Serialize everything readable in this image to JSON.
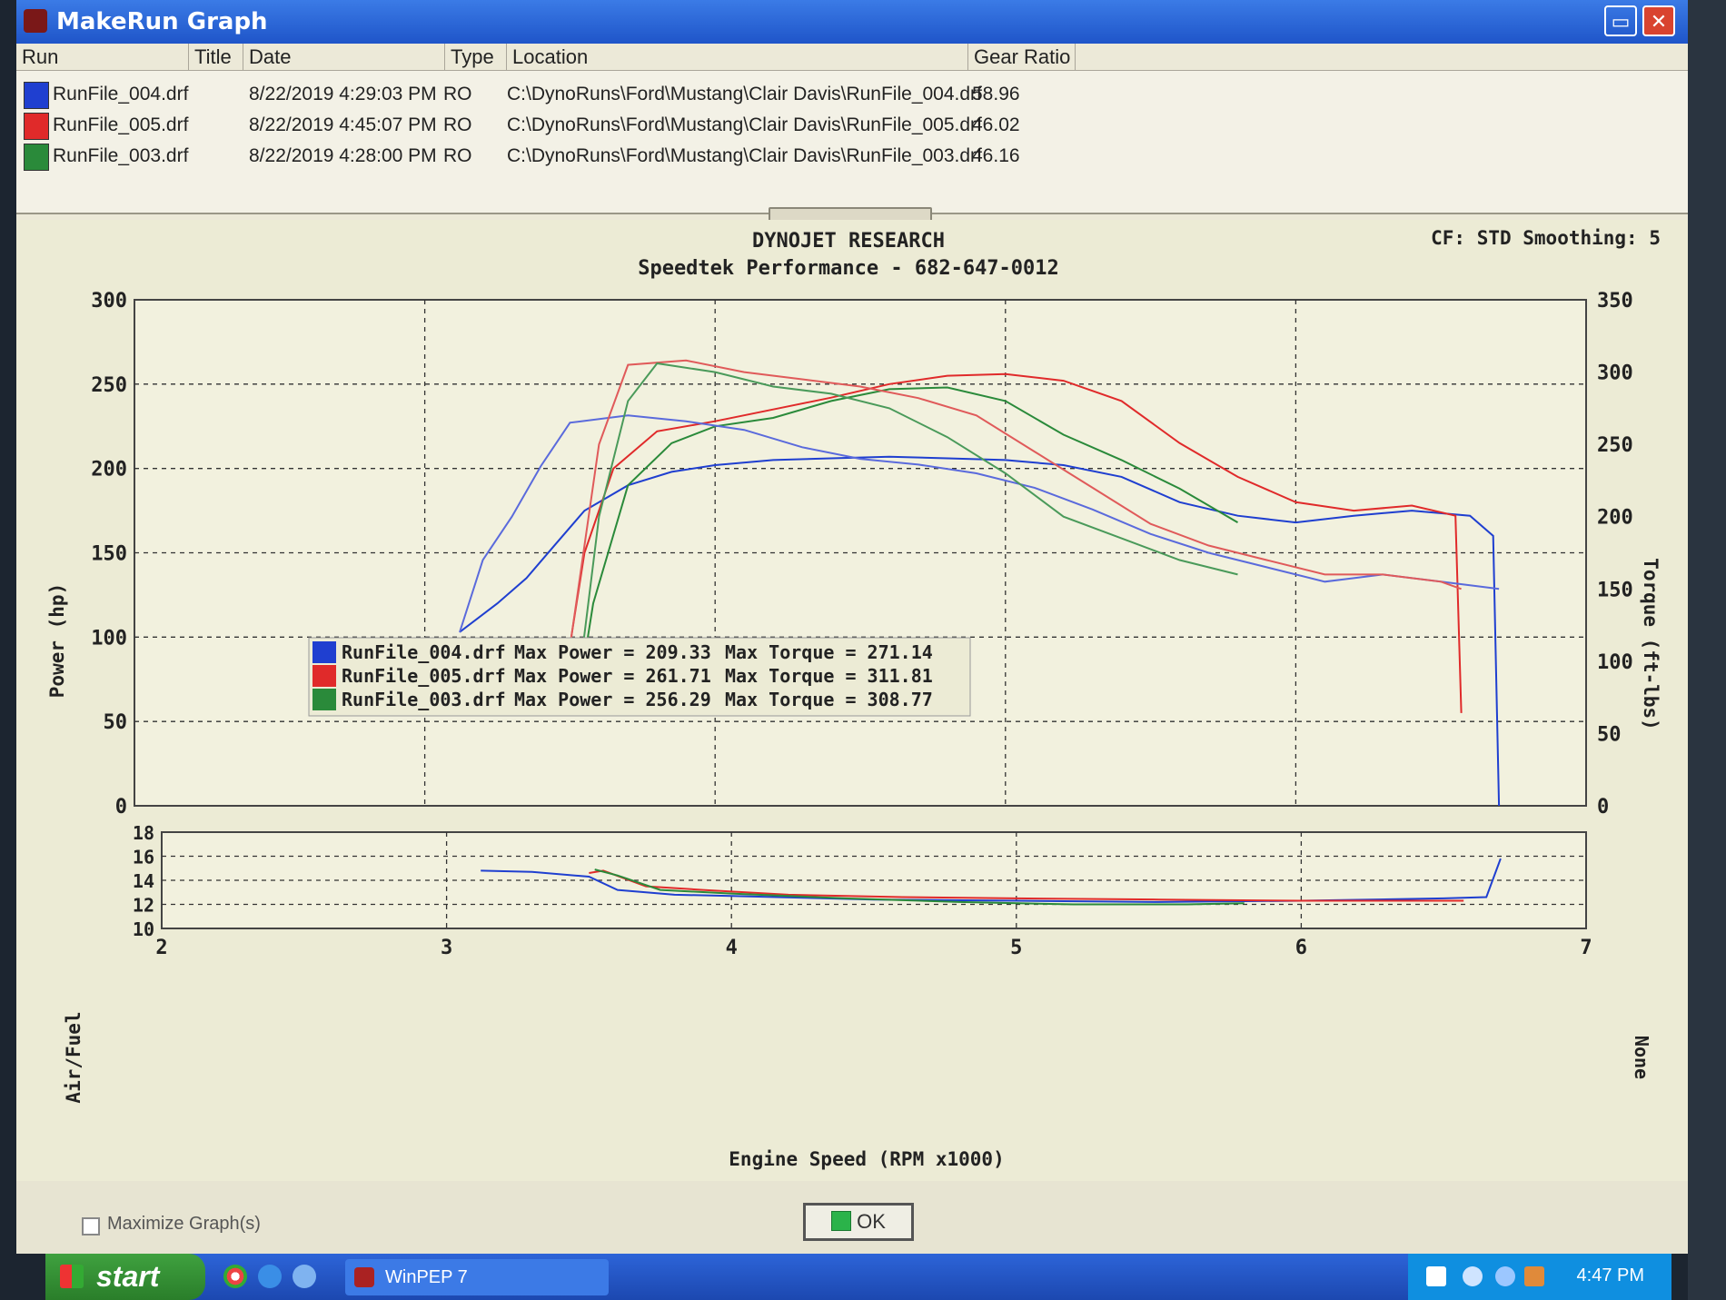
{
  "window": {
    "title": "MakeRun Graph"
  },
  "runlist": {
    "headers": {
      "run": "Run",
      "title": "Title",
      "date": "Date",
      "type": "Type",
      "location": "Location",
      "gear": "Gear Ratio"
    },
    "rows": [
      {
        "name": "RunFile_004.drf",
        "date": "8/22/2019 4:29:03 PM",
        "type": "RO",
        "location": "C:\\DynoRuns\\Ford\\Mustang\\Clair Davis\\RunFile_004.drf",
        "gear": "58.96",
        "color": "#1f3fd0"
      },
      {
        "name": "RunFile_005.drf",
        "date": "8/22/2019 4:45:07 PM",
        "type": "RO",
        "location": "C:\\DynoRuns\\Ford\\Mustang\\Clair Davis\\RunFile_005.drf",
        "gear": "46.02",
        "color": "#e02a2a"
      },
      {
        "name": "RunFile_003.drf",
        "date": "8/22/2019 4:28:00 PM",
        "type": "RO",
        "location": "C:\\DynoRuns\\Ford\\Mustang\\Clair Davis\\RunFile_003.drf",
        "gear": "46.16",
        "color": "#2a8a3a"
      }
    ]
  },
  "graph": {
    "title": "DYNOJET RESEARCH",
    "subtitle": "Speedtek Performance - 682-647-0012",
    "info": "CF: STD  Smoothing: 5",
    "legend": [
      {
        "file": "RunFile_004.drf",
        "power_label": "Max Power = 209.33",
        "torque_label": "Max Torque = 271.14"
      },
      {
        "file": "RunFile_005.drf",
        "power_label": "Max Power = 261.71",
        "torque_label": "Max Torque = 311.81"
      },
      {
        "file": "RunFile_003.drf",
        "power_label": "Max Power = 256.29",
        "torque_label": "Max Torque = 308.77"
      }
    ],
    "afr_right_label": "None"
  },
  "chart_data": [
    {
      "type": "line",
      "xlabel": "Engine Speed (RPM x1000)",
      "ylabel": "Power (hp)",
      "y2label": "Torque (ft-lbs)",
      "xlim": [
        2,
        7
      ],
      "ylim": [
        0,
        300
      ],
      "y2lim": [
        0,
        350
      ],
      "xticks": [
        "2",
        "3",
        "4",
        "5",
        "6",
        "7"
      ],
      "yticks": [
        "0",
        "50",
        "100",
        "150",
        "200",
        "250",
        "300"
      ],
      "y2ticks": [
        "0",
        "50",
        "100",
        "150",
        "200",
        "250",
        "300",
        "350"
      ],
      "series": [
        {
          "name": "RunFile_004.drf",
          "measure": "power",
          "axis": "left",
          "color": "#1f3fd0",
          "x": [
            3.12,
            3.25,
            3.35,
            3.45,
            3.55,
            3.7,
            3.85,
            4.0,
            4.2,
            4.4,
            4.6,
            4.8,
            5.0,
            5.2,
            5.4,
            5.6,
            5.8,
            6.0,
            6.2,
            6.4,
            6.6,
            6.68,
            6.7
          ],
          "y": [
            103,
            120,
            135,
            155,
            175,
            190,
            198,
            202,
            205,
            206,
            207,
            206,
            205,
            202,
            195,
            180,
            172,
            168,
            172,
            175,
            172,
            160,
            0
          ]
        },
        {
          "name": "RunFile_005.drf",
          "measure": "power",
          "axis": "left",
          "color": "#e02a2a",
          "x": [
            3.5,
            3.55,
            3.65,
            3.8,
            4.0,
            4.2,
            4.4,
            4.6,
            4.8,
            5.0,
            5.2,
            5.4,
            5.6,
            5.8,
            6.0,
            6.2,
            6.4,
            6.55,
            6.57
          ],
          "y": [
            95,
            150,
            200,
            222,
            228,
            235,
            242,
            250,
            255,
            256,
            252,
            240,
            215,
            195,
            180,
            175,
            178,
            172,
            55
          ]
        },
        {
          "name": "RunFile_003.drf",
          "measure": "power",
          "axis": "left",
          "color": "#2a8a3a",
          "x": [
            3.52,
            3.58,
            3.7,
            3.85,
            4.0,
            4.2,
            4.4,
            4.6,
            4.8,
            5.0,
            5.2,
            5.4,
            5.6,
            5.8
          ],
          "y": [
            55,
            120,
            190,
            215,
            225,
            230,
            240,
            247,
            248,
            240,
            220,
            205,
            188,
            168
          ]
        },
        {
          "name": "RunFile_004.drf",
          "measure": "torque",
          "axis": "right",
          "color": "#5a6adc",
          "x": [
            3.12,
            3.2,
            3.3,
            3.4,
            3.5,
            3.7,
            3.9,
            4.1,
            4.3,
            4.5,
            4.7,
            4.9,
            5.1,
            5.3,
            5.5,
            5.7,
            5.9,
            6.1,
            6.3,
            6.5,
            6.7
          ],
          "y": [
            120,
            170,
            200,
            235,
            265,
            270,
            266,
            260,
            248,
            240,
            236,
            230,
            220,
            205,
            188,
            175,
            165,
            155,
            160,
            155,
            150
          ]
        },
        {
          "name": "RunFile_005.drf",
          "measure": "torque",
          "axis": "right",
          "color": "#e05a5a",
          "x": [
            3.5,
            3.6,
            3.7,
            3.9,
            4.1,
            4.3,
            4.5,
            4.7,
            4.9,
            5.1,
            5.3,
            5.5,
            5.7,
            5.9,
            6.1,
            6.3,
            6.5,
            6.57
          ],
          "y": [
            110,
            250,
            305,
            308,
            300,
            295,
            290,
            282,
            270,
            245,
            220,
            195,
            180,
            170,
            160,
            160,
            155,
            150
          ]
        },
        {
          "name": "RunFile_003.drf",
          "measure": "torque",
          "axis": "right",
          "color": "#4a9a5a",
          "x": [
            3.52,
            3.6,
            3.7,
            3.8,
            4.0,
            4.2,
            4.4,
            4.6,
            4.8,
            5.0,
            5.2,
            5.4,
            5.6,
            5.8
          ],
          "y": [
            70,
            200,
            280,
            306,
            300,
            290,
            285,
            275,
            255,
            230,
            200,
            185,
            170,
            160
          ]
        }
      ]
    },
    {
      "type": "line",
      "xlabel": "Engine Speed (RPM x1000)",
      "ylabel": "Air/Fuel",
      "xlim": [
        2,
        7
      ],
      "ylim": [
        10,
        18
      ],
      "yticks": [
        "10",
        "12",
        "14",
        "16",
        "18"
      ],
      "series": [
        {
          "name": "RunFile_004.drf",
          "color": "#1f3fd0",
          "x": [
            3.12,
            3.3,
            3.5,
            3.6,
            3.8,
            4.0,
            4.5,
            5.0,
            5.5,
            6.0,
            6.5,
            6.65,
            6.7
          ],
          "y": [
            14.8,
            14.7,
            14.3,
            13.2,
            12.8,
            12.7,
            12.4,
            12.3,
            12.2,
            12.3,
            12.5,
            12.6,
            15.8
          ]
        },
        {
          "name": "RunFile_005.drf",
          "color": "#e02a2a",
          "x": [
            3.5,
            3.55,
            3.7,
            3.9,
            4.2,
            4.6,
            5.0,
            5.5,
            6.0,
            6.57
          ],
          "y": [
            14.6,
            14.8,
            13.5,
            13.2,
            12.8,
            12.6,
            12.5,
            12.4,
            12.3,
            12.3
          ]
        },
        {
          "name": "RunFile_003.drf",
          "color": "#2a8a3a",
          "x": [
            3.52,
            3.6,
            3.75,
            4.0,
            4.4,
            4.8,
            5.2,
            5.6,
            5.8
          ],
          "y": [
            14.9,
            14.4,
            13.2,
            12.9,
            12.5,
            12.2,
            12.0,
            12.0,
            12.1
          ]
        }
      ]
    }
  ],
  "bottom": {
    "maximize_label": "Maximize Graph(s)",
    "ok_label": "OK"
  },
  "taskbar": {
    "start_label": "start",
    "task_label": "WinPEP 7",
    "clock": "4:47 PM"
  }
}
